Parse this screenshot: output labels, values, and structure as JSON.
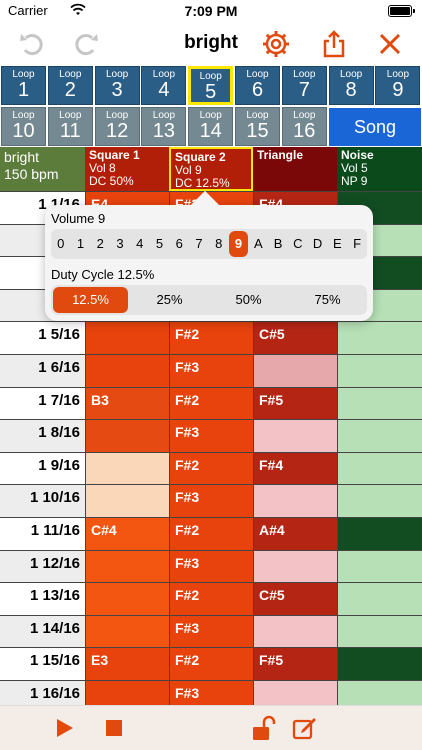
{
  "status": {
    "carrier": "Carrier",
    "time": "7:09 PM"
  },
  "nav": {
    "title": "bright",
    "undo_icon": "undo-icon",
    "redo_icon": "redo-icon",
    "settings_icon": "gear-icon",
    "share_icon": "share-icon",
    "close_icon": "close-icon"
  },
  "loops": [
    {
      "label": "Loop",
      "number": "1"
    },
    {
      "label": "Loop",
      "number": "2"
    },
    {
      "label": "Loop",
      "number": "3"
    },
    {
      "label": "Loop",
      "number": "4"
    },
    {
      "label": "Loop",
      "number": "5"
    },
    {
      "label": "Loop",
      "number": "6"
    },
    {
      "label": "Loop",
      "number": "7"
    },
    {
      "label": "Loop",
      "number": "8"
    },
    {
      "label": "Loop",
      "number": "9"
    },
    {
      "label": "Loop",
      "number": "10"
    },
    {
      "label": "Loop",
      "number": "11"
    },
    {
      "label": "Loop",
      "number": "12"
    },
    {
      "label": "Loop",
      "number": "13"
    },
    {
      "label": "Loop",
      "number": "14"
    },
    {
      "label": "Loop",
      "number": "15"
    },
    {
      "label": "Loop",
      "number": "16"
    }
  ],
  "song_button": "Song",
  "song_info": {
    "name": "bright",
    "bpm": "150 bpm"
  },
  "channels": [
    {
      "name": "Square 1",
      "line1": "Vol 8",
      "line2": "DC 50%",
      "color": "#b11f08"
    },
    {
      "name": "Square 2",
      "line1": "Vol 9",
      "line2": "DC 12.5%",
      "color": "#b11f08"
    },
    {
      "name": "Triangle",
      "line1": "",
      "line2": "",
      "color": "#7a0808"
    },
    {
      "name": "Noise",
      "line1": "Vol 5",
      "line2": "NP 9",
      "color": "#0b4a1b"
    }
  ],
  "rows": [
    {
      "step": "1  1/16",
      "sq1": "E4",
      "sq2": "F#3",
      "tri": "F#4"
    },
    {
      "step": "1",
      "sq1": "",
      "sq2": "",
      "tri": ""
    },
    {
      "step": "1",
      "sq1": "",
      "sq2": "",
      "tri": ""
    },
    {
      "step": "1",
      "sq1": "",
      "sq2": "",
      "tri": ""
    },
    {
      "step": "1  5/16",
      "sq1": "",
      "sq2": "F#2",
      "tri": "C#5"
    },
    {
      "step": "1  6/16",
      "sq1": "",
      "sq2": "F#3",
      "tri": ""
    },
    {
      "step": "1  7/16",
      "sq1": "B3",
      "sq2": "F#2",
      "tri": "F#5"
    },
    {
      "step": "1  8/16",
      "sq1": "",
      "sq2": "F#3",
      "tri": ""
    },
    {
      "step": "1  9/16",
      "sq1": "",
      "sq2": "F#2",
      "tri": "F#4"
    },
    {
      "step": "1 10/16",
      "sq1": "",
      "sq2": "F#3",
      "tri": ""
    },
    {
      "step": "1 11/16",
      "sq1": "C#4",
      "sq2": "F#2",
      "tri": "A#4"
    },
    {
      "step": "1 12/16",
      "sq1": "",
      "sq2": "F#3",
      "tri": ""
    },
    {
      "step": "1 13/16",
      "sq1": "",
      "sq2": "F#2",
      "tri": "C#5"
    },
    {
      "step": "1 14/16",
      "sq1": "",
      "sq2": "F#3",
      "tri": ""
    },
    {
      "step": "1 15/16",
      "sq1": "E3",
      "sq2": "F#2",
      "tri": "F#5"
    },
    {
      "step": "1 16/16",
      "sq1": "",
      "sq2": "F#3",
      "tri": ""
    }
  ],
  "popover": {
    "volume_label": "Volume 9",
    "volume_values": [
      "0",
      "1",
      "2",
      "3",
      "4",
      "5",
      "6",
      "7",
      "8",
      "9",
      "A",
      "B",
      "C",
      "D",
      "E",
      "F"
    ],
    "volume_selected": "9",
    "duty_label": "Duty Cycle 12.5%",
    "duty_values": [
      "12.5%",
      "25%",
      "50%",
      "75%"
    ],
    "duty_selected": "12.5%"
  },
  "toolbar": {
    "play_icon": "play-icon",
    "stop_icon": "stop-icon",
    "lock_icon": "unlock-icon",
    "edit_icon": "edit-icon"
  },
  "colors": {
    "accent": "#e14a0e",
    "loop_blue": "#2b5e86",
    "loop_gray": "#758992",
    "song_blue": "#1b66d6",
    "selected_border": "#ffe600"
  }
}
